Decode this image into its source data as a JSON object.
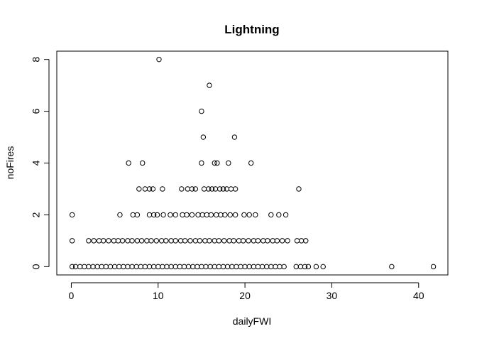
{
  "chart_data": {
    "type": "scatter",
    "title": "Lightning",
    "xlabel": "dailyFWI",
    "ylabel": "noFires",
    "xlim": [
      -1.67,
      43.37
    ],
    "ylim": [
      -0.32,
      8.32
    ],
    "xticks": [
      0,
      10,
      20,
      30,
      40
    ],
    "yticks": [
      0,
      2,
      4,
      6,
      8
    ],
    "grid": false,
    "legend": "none",
    "points": [
      [
        10.1,
        8
      ],
      [
        15.9,
        7
      ],
      [
        15.0,
        6
      ],
      [
        15.2,
        5
      ],
      [
        18.8,
        5
      ],
      [
        6.6,
        4
      ],
      [
        8.2,
        4
      ],
      [
        15.0,
        4
      ],
      [
        16.5,
        4
      ],
      [
        16.8,
        4
      ],
      [
        18.1,
        4
      ],
      [
        20.7,
        4
      ],
      [
        7.8,
        3
      ],
      [
        8.5,
        3
      ],
      [
        9.0,
        3
      ],
      [
        9.4,
        3
      ],
      [
        10.5,
        3
      ],
      [
        12.7,
        3
      ],
      [
        13.4,
        3
      ],
      [
        13.9,
        3
      ],
      [
        14.3,
        3
      ],
      [
        15.3,
        3
      ],
      [
        15.8,
        3
      ],
      [
        16.2,
        3
      ],
      [
        16.6,
        3
      ],
      [
        17.1,
        3
      ],
      [
        17.5,
        3
      ],
      [
        17.9,
        3
      ],
      [
        18.4,
        3
      ],
      [
        18.9,
        3
      ],
      [
        26.2,
        3
      ],
      [
        0.1,
        2
      ],
      [
        5.6,
        2
      ],
      [
        7.1,
        2
      ],
      [
        7.6,
        2
      ],
      [
        9.0,
        2
      ],
      [
        9.5,
        2
      ],
      [
        9.9,
        2
      ],
      [
        10.6,
        2
      ],
      [
        11.4,
        2
      ],
      [
        12.0,
        2
      ],
      [
        12.8,
        2
      ],
      [
        13.3,
        2
      ],
      [
        13.9,
        2
      ],
      [
        14.6,
        2
      ],
      [
        15.1,
        2
      ],
      [
        15.6,
        2
      ],
      [
        16.1,
        2
      ],
      [
        16.7,
        2
      ],
      [
        17.2,
        2
      ],
      [
        17.7,
        2
      ],
      [
        18.3,
        2
      ],
      [
        18.9,
        2
      ],
      [
        19.9,
        2
      ],
      [
        20.5,
        2
      ],
      [
        21.2,
        2
      ],
      [
        23.0,
        2
      ],
      [
        23.9,
        2
      ],
      [
        24.7,
        2
      ],
      [
        0.1,
        1
      ],
      [
        2.0,
        1
      ],
      [
        2.6,
        1
      ],
      [
        3.2,
        1
      ],
      [
        3.7,
        1
      ],
      [
        4.3,
        1
      ],
      [
        4.9,
        1
      ],
      [
        5.4,
        1
      ],
      [
        5.9,
        1
      ],
      [
        6.5,
        1
      ],
      [
        7.0,
        1
      ],
      [
        7.6,
        1
      ],
      [
        8.1,
        1
      ],
      [
        8.7,
        1
      ],
      [
        9.2,
        1
      ],
      [
        9.8,
        1
      ],
      [
        10.4,
        1
      ],
      [
        10.9,
        1
      ],
      [
        11.5,
        1
      ],
      [
        12.0,
        1
      ],
      [
        12.6,
        1
      ],
      [
        13.1,
        1
      ],
      [
        13.7,
        1
      ],
      [
        14.3,
        1
      ],
      [
        14.8,
        1
      ],
      [
        15.4,
        1
      ],
      [
        15.9,
        1
      ],
      [
        16.5,
        1
      ],
      [
        17.0,
        1
      ],
      [
        17.6,
        1
      ],
      [
        18.2,
        1
      ],
      [
        18.7,
        1
      ],
      [
        19.3,
        1
      ],
      [
        19.8,
        1
      ],
      [
        20.4,
        1
      ],
      [
        21.0,
        1
      ],
      [
        21.5,
        1
      ],
      [
        22.1,
        1
      ],
      [
        22.6,
        1
      ],
      [
        23.2,
        1
      ],
      [
        23.7,
        1
      ],
      [
        24.3,
        1
      ],
      [
        24.9,
        1
      ],
      [
        26.0,
        1
      ],
      [
        26.5,
        1
      ],
      [
        27.0,
        1
      ],
      [
        0.1,
        0
      ],
      [
        0.5,
        0
      ],
      [
        1.0,
        0
      ],
      [
        1.5,
        0
      ],
      [
        2.0,
        0
      ],
      [
        2.5,
        0
      ],
      [
        3.0,
        0
      ],
      [
        3.5,
        0
      ],
      [
        4.0,
        0
      ],
      [
        4.5,
        0
      ],
      [
        5.0,
        0
      ],
      [
        5.5,
        0
      ],
      [
        6.0,
        0
      ],
      [
        6.5,
        0
      ],
      [
        7.0,
        0
      ],
      [
        7.5,
        0
      ],
      [
        8.0,
        0
      ],
      [
        8.5,
        0
      ],
      [
        9.0,
        0
      ],
      [
        9.5,
        0
      ],
      [
        10.0,
        0
      ],
      [
        10.5,
        0
      ],
      [
        11.0,
        0
      ],
      [
        11.5,
        0
      ],
      [
        12.0,
        0
      ],
      [
        12.5,
        0
      ],
      [
        13.0,
        0
      ],
      [
        13.5,
        0
      ],
      [
        14.0,
        0
      ],
      [
        14.5,
        0
      ],
      [
        15.0,
        0
      ],
      [
        15.5,
        0
      ],
      [
        16.0,
        0
      ],
      [
        16.5,
        0
      ],
      [
        17.0,
        0
      ],
      [
        17.5,
        0
      ],
      [
        18.0,
        0
      ],
      [
        18.5,
        0
      ],
      [
        19.0,
        0
      ],
      [
        19.5,
        0
      ],
      [
        20.0,
        0
      ],
      [
        20.5,
        0
      ],
      [
        21.0,
        0
      ],
      [
        21.5,
        0
      ],
      [
        22.0,
        0
      ],
      [
        22.5,
        0
      ],
      [
        23.0,
        0
      ],
      [
        23.5,
        0
      ],
      [
        24.0,
        0
      ],
      [
        24.5,
        0
      ],
      [
        25.9,
        0
      ],
      [
        26.4,
        0
      ],
      [
        26.9,
        0
      ],
      [
        27.3,
        0
      ],
      [
        28.2,
        0
      ],
      [
        29.0,
        0
      ],
      [
        36.9,
        0
      ],
      [
        41.7,
        0
      ]
    ]
  }
}
